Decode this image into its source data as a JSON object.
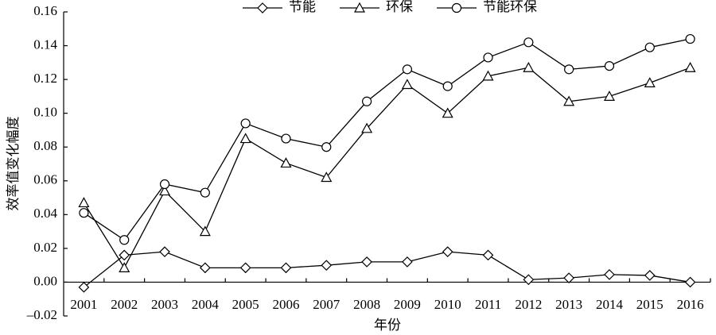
{
  "chart_data": {
    "type": "line",
    "x_label": "年份",
    "y_label": "效率值变化幅度",
    "categories": [
      "2001",
      "2002",
      "2003",
      "2004",
      "2005",
      "2006",
      "2007",
      "2008",
      "2009",
      "2010",
      "2011",
      "2012",
      "2013",
      "2014",
      "2015",
      "2016"
    ],
    "series": [
      {
        "name": "节能",
        "color": "#000000",
        "marker": "diamond",
        "values": [
          -0.003,
          0.016,
          0.018,
          0.0085,
          0.0085,
          0.0085,
          0.01,
          0.012,
          0.012,
          0.018,
          0.016,
          0.0015,
          0.0025,
          0.0045,
          0.004,
          0.0
        ]
      },
      {
        "name": "环保",
        "color": "#000000",
        "marker": "triangle",
        "values": [
          0.047,
          0.0085,
          0.054,
          0.03,
          0.085,
          0.0705,
          0.062,
          0.091,
          0.117,
          0.1,
          0.122,
          0.127,
          0.107,
          0.11,
          0.118,
          0.127
        ]
      },
      {
        "name": "节能环保",
        "color": "#000000",
        "marker": "circle",
        "values": [
          0.041,
          0.025,
          0.058,
          0.053,
          0.094,
          0.085,
          0.08,
          0.107,
          0.126,
          0.116,
          0.133,
          0.142,
          0.126,
          0.128,
          0.139,
          0.144
        ]
      }
    ],
    "ylim": [
      -0.02,
      0.16
    ],
    "yticks": [
      {
        "value": -0.02,
        "label": "–0.02"
      },
      {
        "value": 0,
        "label": "0.00"
      },
      0.02,
      0.04,
      0.06,
      0.08,
      {
        "value": 0.1,
        "label": "0.10"
      },
      0.12,
      0.14,
      0.16
    ]
  }
}
